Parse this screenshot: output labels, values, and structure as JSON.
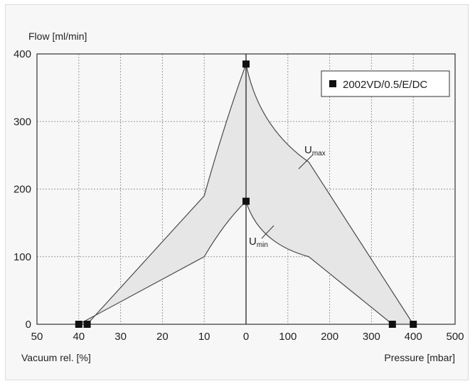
{
  "chart_data": {
    "type": "area",
    "title": "",
    "ylabel": "Flow [ml/min]",
    "xlabel_left": "Vacuum rel. [%]",
    "xlabel_right": "Pressure [mbar]",
    "ylim": [
      0,
      400
    ],
    "yticks": [
      "0",
      "100",
      "200",
      "300",
      "400"
    ],
    "vacuum_ticks": [
      "50",
      "40",
      "30",
      "20",
      "10",
      "0"
    ],
    "pressure_ticks": [
      "0",
      "100",
      "200",
      "300",
      "400",
      "500"
    ],
    "grid": true,
    "legend": {
      "position": "top-right",
      "marker": "square",
      "label": "2002VD/0.5/E/DC"
    },
    "series": [
      {
        "name": "Umax",
        "label_main": "U",
        "label_sub": "max",
        "vacuum_points": [
          [
            0,
            385
          ],
          [
            10,
            190
          ],
          [
            38,
            0
          ]
        ],
        "pressure_points": [
          [
            0,
            385
          ],
          [
            150,
            240
          ],
          [
            400,
            0
          ]
        ]
      },
      {
        "name": "Umin",
        "label_main": "U",
        "label_sub": "min",
        "vacuum_points": [
          [
            0,
            182
          ],
          [
            10,
            100
          ],
          [
            40,
            0
          ]
        ],
        "pressure_points": [
          [
            0,
            182
          ],
          [
            150,
            100
          ],
          [
            350,
            0
          ]
        ]
      }
    ],
    "markers": [
      {
        "side": "vacuum",
        "x": 0,
        "y": 385
      },
      {
        "side": "vacuum",
        "x": 0,
        "y": 182
      },
      {
        "side": "vacuum",
        "x": 38,
        "y": 0
      },
      {
        "side": "vacuum",
        "x": 40,
        "y": 0
      },
      {
        "side": "pressure",
        "x": 350,
        "y": 0
      },
      {
        "side": "pressure",
        "x": 400,
        "y": 0
      }
    ],
    "colors": {
      "band_fill": "#e6e6e6",
      "curve": "#4a4a4a",
      "marker": "#111111",
      "grid": "#9a9a9a"
    }
  }
}
